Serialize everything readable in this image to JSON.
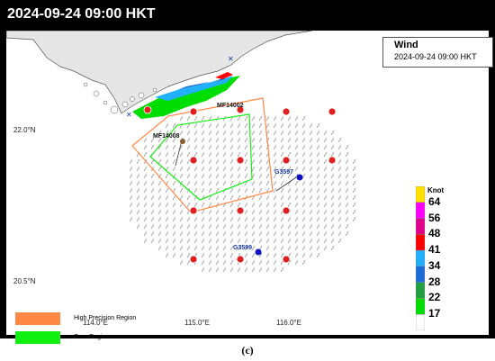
{
  "header": {
    "timestamp": "2024-09-24 09:00 HKT"
  },
  "info_box": {
    "title": "Wind",
    "time": "2024-09-24 09:00 HKT"
  },
  "latitudes": {
    "lat_22": "22.0°N",
    "lat_205": "20.5°N"
  },
  "longitudes": [
    "114.0°E",
    "115.0°E",
    "116.0°E"
  ],
  "stations": {
    "mf14002": "MF14002",
    "mf14008": "MF14008",
    "g3597": "G3597",
    "g3599": "G3599"
  },
  "scale": {
    "title": "Knot",
    "labels": [
      "64",
      "56",
      "48",
      "41",
      "34",
      "28",
      "22",
      "17"
    ],
    "colors": [
      "#ffe000",
      "#ff00ff",
      "#e0008a",
      "#ff0000",
      "#20b0ff",
      "#1a6ad8",
      "#20a040",
      "#00dd00",
      "#ffffff"
    ]
  },
  "legend": {
    "high_precision": "High Precision Region",
    "core": "Core Region",
    "high_color": "#ff8844",
    "core_color": "#11ee11"
  },
  "caption": "(c)"
}
